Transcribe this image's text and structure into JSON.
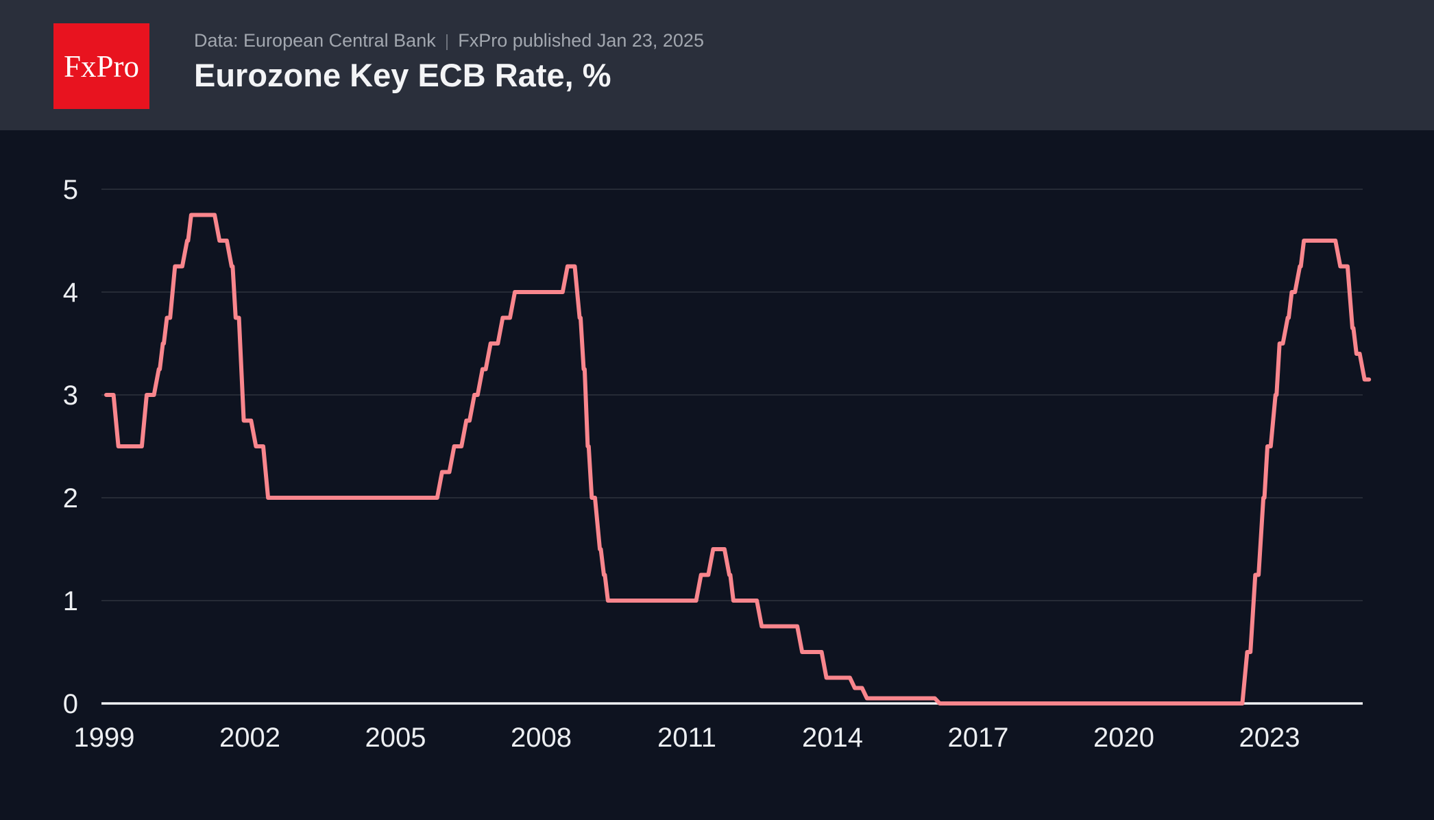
{
  "header": {
    "logo_text": "FxPro",
    "source_label": "Data: European Central Bank",
    "separator": "|",
    "published_label": "FxPro published Jan 23, 2025",
    "title": "Eurozone Key ECB Rate, %"
  },
  "colors": {
    "header_bg": "#2a2f3b",
    "chart_bg": "#0e1320",
    "logo_bg": "#e8131f",
    "logo_text": "#ffffff",
    "title_text": "#f3f4f6",
    "subtitle_text": "#a2a7af",
    "separator_text": "#6e737d",
    "tick_text": "#edeff2",
    "gridline": "#262b36",
    "zero_axis": "#f0f2f4",
    "line": "#f9868d"
  },
  "chart_data": {
    "type": "line",
    "step": true,
    "title": "Eurozone Key ECB Rate, %",
    "xlabel": "",
    "ylabel": "",
    "x_ticks": [
      1999,
      2002,
      2005,
      2008,
      2011,
      2014,
      2017,
      2020,
      2023
    ],
    "y_ticks": [
      5,
      4,
      3,
      2,
      1,
      0
    ],
    "xlim": [
      1999.0,
      2025.05
    ],
    "ylim": [
      0,
      5
    ],
    "grid": "horizontal-only",
    "legend": "none",
    "series": [
      {
        "name": "ECB key rate, %",
        "changes": [
          [
            "1999-01",
            3.0
          ],
          [
            "1999-04",
            2.5
          ],
          [
            "1999-11",
            3.0
          ],
          [
            "2000-02",
            3.25
          ],
          [
            "2000-03",
            3.5
          ],
          [
            "2000-04",
            3.75
          ],
          [
            "2000-06",
            4.25
          ],
          [
            "2000-09",
            4.5
          ],
          [
            "2000-10",
            4.75
          ],
          [
            "2001-05",
            4.5
          ],
          [
            "2001-08",
            4.25
          ],
          [
            "2001-09",
            3.75
          ],
          [
            "2001-11",
            2.75
          ],
          [
            "2002-02",
            2.5
          ],
          [
            "2002-05",
            2.0
          ],
          [
            "2005-12",
            2.25
          ],
          [
            "2006-03",
            2.5
          ],
          [
            "2006-06",
            2.75
          ],
          [
            "2006-08",
            3.0
          ],
          [
            "2006-10",
            3.25
          ],
          [
            "2006-12",
            3.5
          ],
          [
            "2007-03",
            3.75
          ],
          [
            "2007-06",
            4.0
          ],
          [
            "2008-07",
            4.25
          ],
          [
            "2008-10",
            3.75
          ],
          [
            "2008-11",
            3.25
          ],
          [
            "2008-12",
            2.5
          ],
          [
            "2009-01",
            2.0
          ],
          [
            "2009-03",
            1.5
          ],
          [
            "2009-04",
            1.25
          ],
          [
            "2009-05",
            1.0
          ],
          [
            "2011-04",
            1.25
          ],
          [
            "2011-07",
            1.5
          ],
          [
            "2011-11",
            1.25
          ],
          [
            "2011-12",
            1.0
          ],
          [
            "2012-07",
            0.75
          ],
          [
            "2013-05",
            0.5
          ],
          [
            "2013-11",
            0.25
          ],
          [
            "2014-06",
            0.15
          ],
          [
            "2014-09",
            0.05
          ],
          [
            "2016-03",
            0.0
          ],
          [
            "2022-07",
            0.5
          ],
          [
            "2022-09",
            1.25
          ],
          [
            "2022-11",
            2.0
          ],
          [
            "2022-12",
            2.5
          ],
          [
            "2023-02",
            3.0
          ],
          [
            "2023-03",
            3.5
          ],
          [
            "2023-05",
            3.75
          ],
          [
            "2023-06",
            4.0
          ],
          [
            "2023-08",
            4.25
          ],
          [
            "2023-09",
            4.5
          ],
          [
            "2024-06",
            4.25
          ],
          [
            "2024-09",
            3.65
          ],
          [
            "2024-10",
            3.4
          ],
          [
            "2024-12",
            3.15
          ]
        ],
        "last_value": 3.15
      }
    ]
  }
}
